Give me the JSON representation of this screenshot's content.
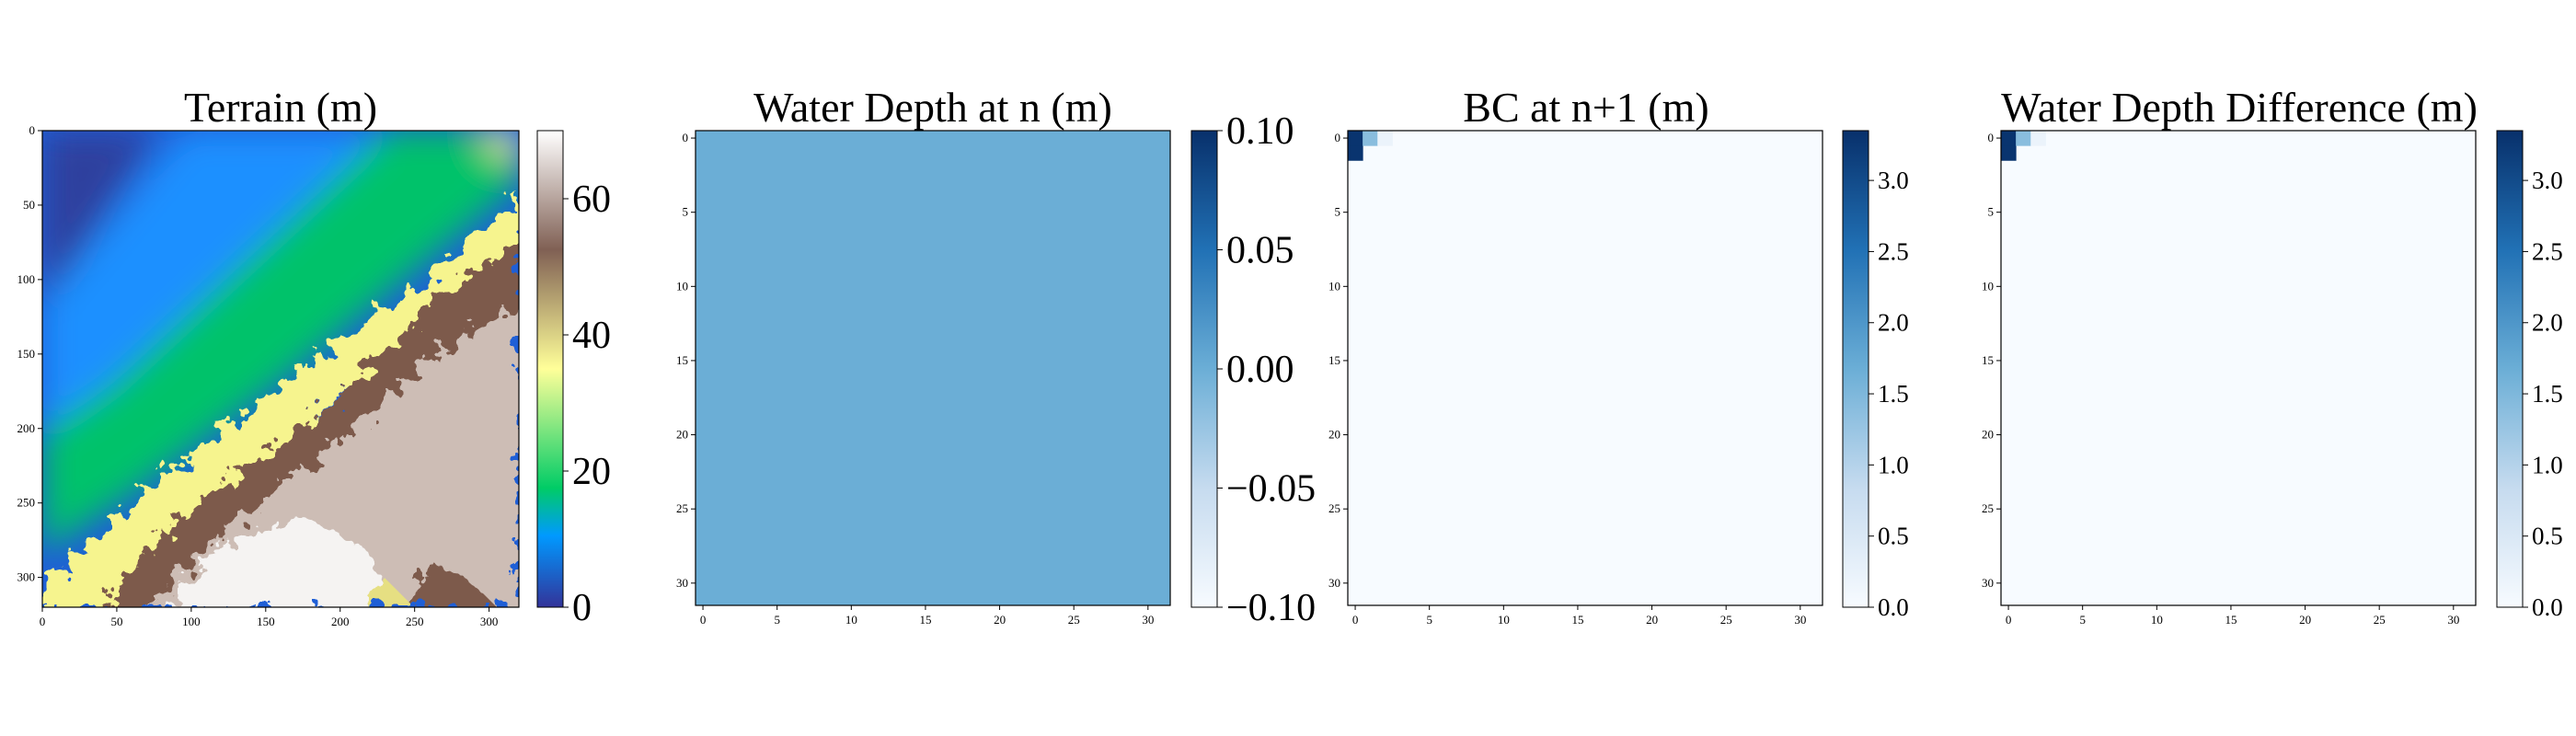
{
  "chart_data": [
    {
      "type": "heatmap",
      "title": "Terrain (m)",
      "colormap": "terrain",
      "grid": false,
      "grid_size": [
        320,
        320
      ],
      "xlim": [
        0,
        320
      ],
      "ylim": [
        320,
        0
      ],
      "xticks": [
        0,
        50,
        100,
        150,
        200,
        250,
        300
      ],
      "yticks": [
        0,
        50,
        100,
        150,
        200,
        250,
        300
      ],
      "colorbar": {
        "min": 0,
        "max": 70,
        "ticks": [
          0,
          20,
          40,
          60
        ],
        "tick_labels": [
          "0",
          "20",
          "40",
          "60"
        ]
      },
      "description_values": {
        "min_elevation": 0,
        "max_elevation": 70
      }
    },
    {
      "type": "heatmap",
      "title": "Water Depth at n (m)",
      "colormap": "Blues",
      "grid": false,
      "grid_size": [
        32,
        32
      ],
      "xlim": [
        0,
        31
      ],
      "ylim": [
        31,
        0
      ],
      "xticks": [
        0,
        5,
        10,
        15,
        20,
        25,
        30
      ],
      "yticks": [
        0,
        5,
        10,
        15,
        20,
        25,
        30
      ],
      "values_uniform": 0,
      "colorbar": {
        "min": -0.1,
        "max": 0.1,
        "ticks": [
          -0.1,
          -0.05,
          0,
          0.05,
          0.1
        ],
        "tick_labels": [
          "−0.10",
          "−0.05",
          "0.00",
          "0.05",
          "0.10"
        ]
      }
    },
    {
      "type": "heatmap",
      "title": "BC at n+1 (m)",
      "colormap": "Blues",
      "grid": false,
      "grid_size": [
        32,
        32
      ],
      "xlim": [
        0,
        31
      ],
      "ylim": [
        31,
        0
      ],
      "xticks": [
        0,
        5,
        10,
        15,
        20,
        25,
        30
      ],
      "yticks": [
        0,
        5,
        10,
        15,
        20,
        25,
        30
      ],
      "background_value": 0,
      "cells": [
        {
          "row": 0,
          "col": 0,
          "value": 3.3
        },
        {
          "row": 1,
          "col": 0,
          "value": 3.3
        },
        {
          "row": 0,
          "col": 1,
          "value": 1.4
        },
        {
          "row": 0,
          "col": 2,
          "value": 0.2
        }
      ],
      "colorbar": {
        "min": 0,
        "max": 3.35,
        "ticks": [
          0,
          0.5,
          1,
          1.5,
          2,
          2.5,
          3
        ],
        "tick_labels": [
          "0.0",
          "0.5",
          "1.0",
          "1.5",
          "2.0",
          "2.5",
          "3.0"
        ]
      }
    },
    {
      "type": "heatmap",
      "title": "Water Depth Difference (m)",
      "colormap": "Blues",
      "grid": false,
      "grid_size": [
        32,
        32
      ],
      "xlim": [
        0,
        31
      ],
      "ylim": [
        31,
        0
      ],
      "xticks": [
        0,
        5,
        10,
        15,
        20,
        25,
        30
      ],
      "yticks": [
        0,
        5,
        10,
        15,
        20,
        25,
        30
      ],
      "background_value": 0,
      "cells": [
        {
          "row": 0,
          "col": 0,
          "value": 3.3
        },
        {
          "row": 1,
          "col": 0,
          "value": 3.3
        },
        {
          "row": 0,
          "col": 1,
          "value": 1.4
        },
        {
          "row": 0,
          "col": 2,
          "value": 0.2
        }
      ],
      "colorbar": {
        "min": 0,
        "max": 3.35,
        "ticks": [
          0,
          0.5,
          1,
          1.5,
          2,
          2.5,
          3
        ],
        "tick_labels": [
          "0.0",
          "0.5",
          "1.0",
          "1.5",
          "2.0",
          "2.5",
          "3.0"
        ]
      }
    }
  ]
}
